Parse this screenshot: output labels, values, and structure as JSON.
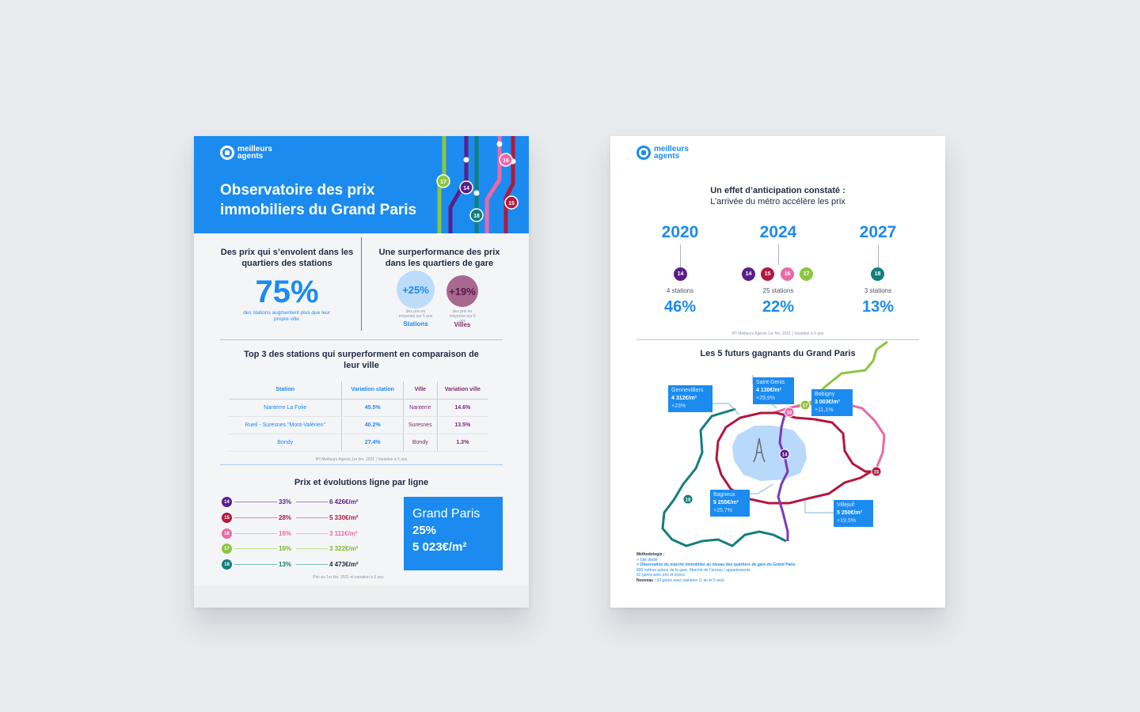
{
  "colors": {
    "brand_blue": "#1b8bf0",
    "line_14": "#5a1e8c",
    "line_15": "#b3173f",
    "line_16": "#ea6aa8",
    "line_17": "#8cc63f",
    "line_18": "#127f7c",
    "city_purple": "#7b2b6a"
  },
  "left_page": {
    "logo": "meilleurs agents",
    "title": "Observatoire des prix immobiliers du Grand Paris",
    "header_lines": [
      "17",
      "14",
      "18",
      "16",
      "15"
    ],
    "left_stat": {
      "heading": "Des prix qui s’envolent dans les quartiers des stations",
      "value": "75%",
      "caption": "des stations augmentent plus que leur propre ville"
    },
    "right_stat": {
      "heading": "Une surperformance des prix dans les quartiers de gare",
      "stations": {
        "value": "+25%",
        "caption": "des prix en moyenne sur 5 ans",
        "label": "Stations"
      },
      "villes": {
        "value": "+19%",
        "caption": "des prix en moyenne sur 5 ans",
        "label": "Villes"
      }
    },
    "top3": {
      "heading": "Top 3 des stations qui surperforment en comparaison de leur ville",
      "columns": [
        "Station",
        "Variation station",
        "Ville",
        "Variation ville"
      ],
      "rows": [
        [
          "Nanterre La Folie",
          "45.5%",
          "Nanterre",
          "14.6%"
        ],
        [
          "Rueil - Suresnes \"Mont-Valérien\"",
          "40.2%",
          "Suresnes",
          "13.5%"
        ],
        [
          "Bondy",
          "27.4%",
          "Bondy",
          "1.3%"
        ]
      ],
      "source": "IPI Meilleurs Agents 1er fév. 2021 | Variation à 5 ans"
    },
    "lines": {
      "heading": "Prix et évolutions ligne par ligne",
      "rows": [
        {
          "line": "14",
          "pct": "33%",
          "price": "6 426€/m²",
          "pct_value": 33
        },
        {
          "line": "15",
          "pct": "28%",
          "price": "5 330€/m²",
          "pct_value": 28
        },
        {
          "line": "16",
          "pct": "16%",
          "price": "3 111€/m²",
          "pct_value": 16
        },
        {
          "line": "17",
          "pct": "16%",
          "price": "3 322€/m²",
          "pct_value": 16
        },
        {
          "line": "18",
          "pct": "13%",
          "price": "4 473€/m²",
          "pct_value": 13
        }
      ],
      "footnote": "Prix au 1er fév. 2021 et variation à 5 ans"
    },
    "grand_paris": {
      "title": "Grand Paris",
      "pct": "25%",
      "price": "5 023€/m²"
    }
  },
  "right_page": {
    "logo": "meilleurs agents",
    "title": "Un effet d’anticipation constaté :",
    "subtitle": "L’arrivée du métro accélère les prix",
    "years": [
      {
        "year": "2020",
        "lines": [
          "14"
        ],
        "stations": "4 stations",
        "pct": "46%"
      },
      {
        "year": "2024",
        "lines": [
          "14",
          "15",
          "16",
          "17"
        ],
        "stations": "25 stations",
        "pct": "22%"
      },
      {
        "year": "2027",
        "lines": [
          "18"
        ],
        "stations": "3 stations",
        "pct": "13%"
      }
    ],
    "years_source": "IPI Meilleurs Agents 1er fév. 2021 | Variation à 5 ans",
    "winners_title": "Les 5 futurs gagnants du Grand Paris",
    "map_badges": [
      "16",
      "17",
      "14",
      "15",
      "18"
    ],
    "winners": [
      {
        "name": "Gennevilliers",
        "price": "4 312€/m²",
        "var": "+23%"
      },
      {
        "name": "Saint-Denis",
        "price": "4 130€/m²",
        "var": "+29,9%"
      },
      {
        "name": "Bobigny",
        "price": "3 003€/m²",
        "var": "+11,1%"
      },
      {
        "name": "Bagneux",
        "price": "5 255€/m²",
        "var": "+25,7%"
      },
      {
        "name": "Villejuif",
        "price": "5 250€/m²",
        "var": "+19,5%"
      }
    ],
    "methodology": {
      "title": "Méthodologie :",
      "lines": [
        "> Site dédié",
        "> Observation du marché immobilier au niveau des quartiers de gare du Grand Paris",
        "800 mètres autour de la gare. Marché de l’ancien / appartements.",
        "62 gares avec prix et loyers"
      ],
      "nouveau_label": "Nouveau :",
      "nouveau_text": "53 gares avec variation (1 an et 5 ans)"
    }
  }
}
